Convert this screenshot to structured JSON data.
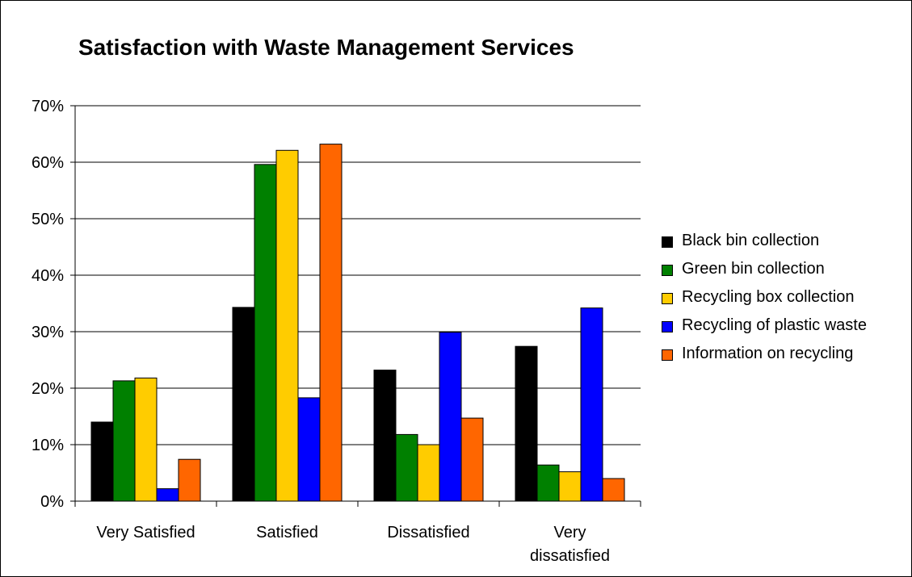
{
  "chart_data": {
    "type": "bar",
    "title": "Satisfaction with Waste Management Services",
    "xlabel": "",
    "ylabel": "",
    "categories": [
      "Very Satisfied",
      "Satisfied",
      "Dissatisfied",
      "Very dissatisfied"
    ],
    "ylim": [
      0,
      0.7
    ],
    "yticks": [
      0,
      0.1,
      0.2,
      0.3,
      0.4,
      0.5,
      0.6,
      0.7
    ],
    "ytick_labels": [
      "0%",
      "10%",
      "20%",
      "30%",
      "40%",
      "50%",
      "60%",
      "70%"
    ],
    "grid": "horizontal",
    "legend_position": "right",
    "series": [
      {
        "name": "Black bin collection",
        "color": "#000000",
        "values": [
          0.14,
          0.343,
          0.232,
          0.274
        ]
      },
      {
        "name": "Green bin collection",
        "color": "#008000",
        "values": [
          0.213,
          0.596,
          0.118,
          0.064
        ]
      },
      {
        "name": "Recycling box collection",
        "color": "#ffcc00",
        "values": [
          0.218,
          0.621,
          0.1,
          0.052
        ]
      },
      {
        "name": "Recycling of plastic waste",
        "color": "#0000ff",
        "values": [
          0.022,
          0.183,
          0.299,
          0.342
        ]
      },
      {
        "name": "Information on recycling",
        "color": "#ff6600",
        "values": [
          0.074,
          0.632,
          0.147,
          0.04
        ]
      }
    ]
  }
}
